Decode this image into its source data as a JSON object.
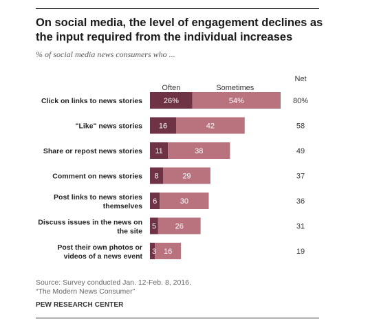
{
  "title": "On social media, the level of engagement declines as the input required from the individual increases",
  "subtitle": "% of social media news consumers who ...",
  "source_lines": [
    "Source: Survey conducted Jan. 12-Feb. 8, 2016.",
    "“The Modern News Consumer”"
  ],
  "org": "PEW RESEARCH CENTER",
  "colors": {
    "often": "#6e3344",
    "sometimes": "#b8737f"
  },
  "chart_data": {
    "type": "bar",
    "orientation": "horizontal",
    "stacked": true,
    "categories": [
      [
        "Click on links to news stories"
      ],
      [
        "\"Like\" news stories"
      ],
      [
        "Share or repost  news stories"
      ],
      [
        "Comment on news stories"
      ],
      [
        "Post links to news stories",
        "themselves"
      ],
      [
        "Discuss issues in the news on",
        "the site"
      ],
      [
        "Post their own photos or",
        "videos  of a news event"
      ]
    ],
    "series": [
      {
        "name": "Often",
        "values": [
          26,
          16,
          11,
          8,
          6,
          5,
          3
        ],
        "labels": [
          "26%",
          "16",
          "11",
          "8",
          "6",
          "5",
          "3"
        ]
      },
      {
        "name": "Sometimes",
        "values": [
          54,
          42,
          38,
          29,
          30,
          26,
          16
        ],
        "labels": [
          "54%",
          "42",
          "38",
          "29",
          "30",
          "26",
          "16"
        ]
      }
    ],
    "net_header": "Net",
    "net": [
      "80%",
      "58",
      "49",
      "37",
      "36",
      "31",
      "19"
    ],
    "xlim": [
      0,
      80
    ]
  }
}
